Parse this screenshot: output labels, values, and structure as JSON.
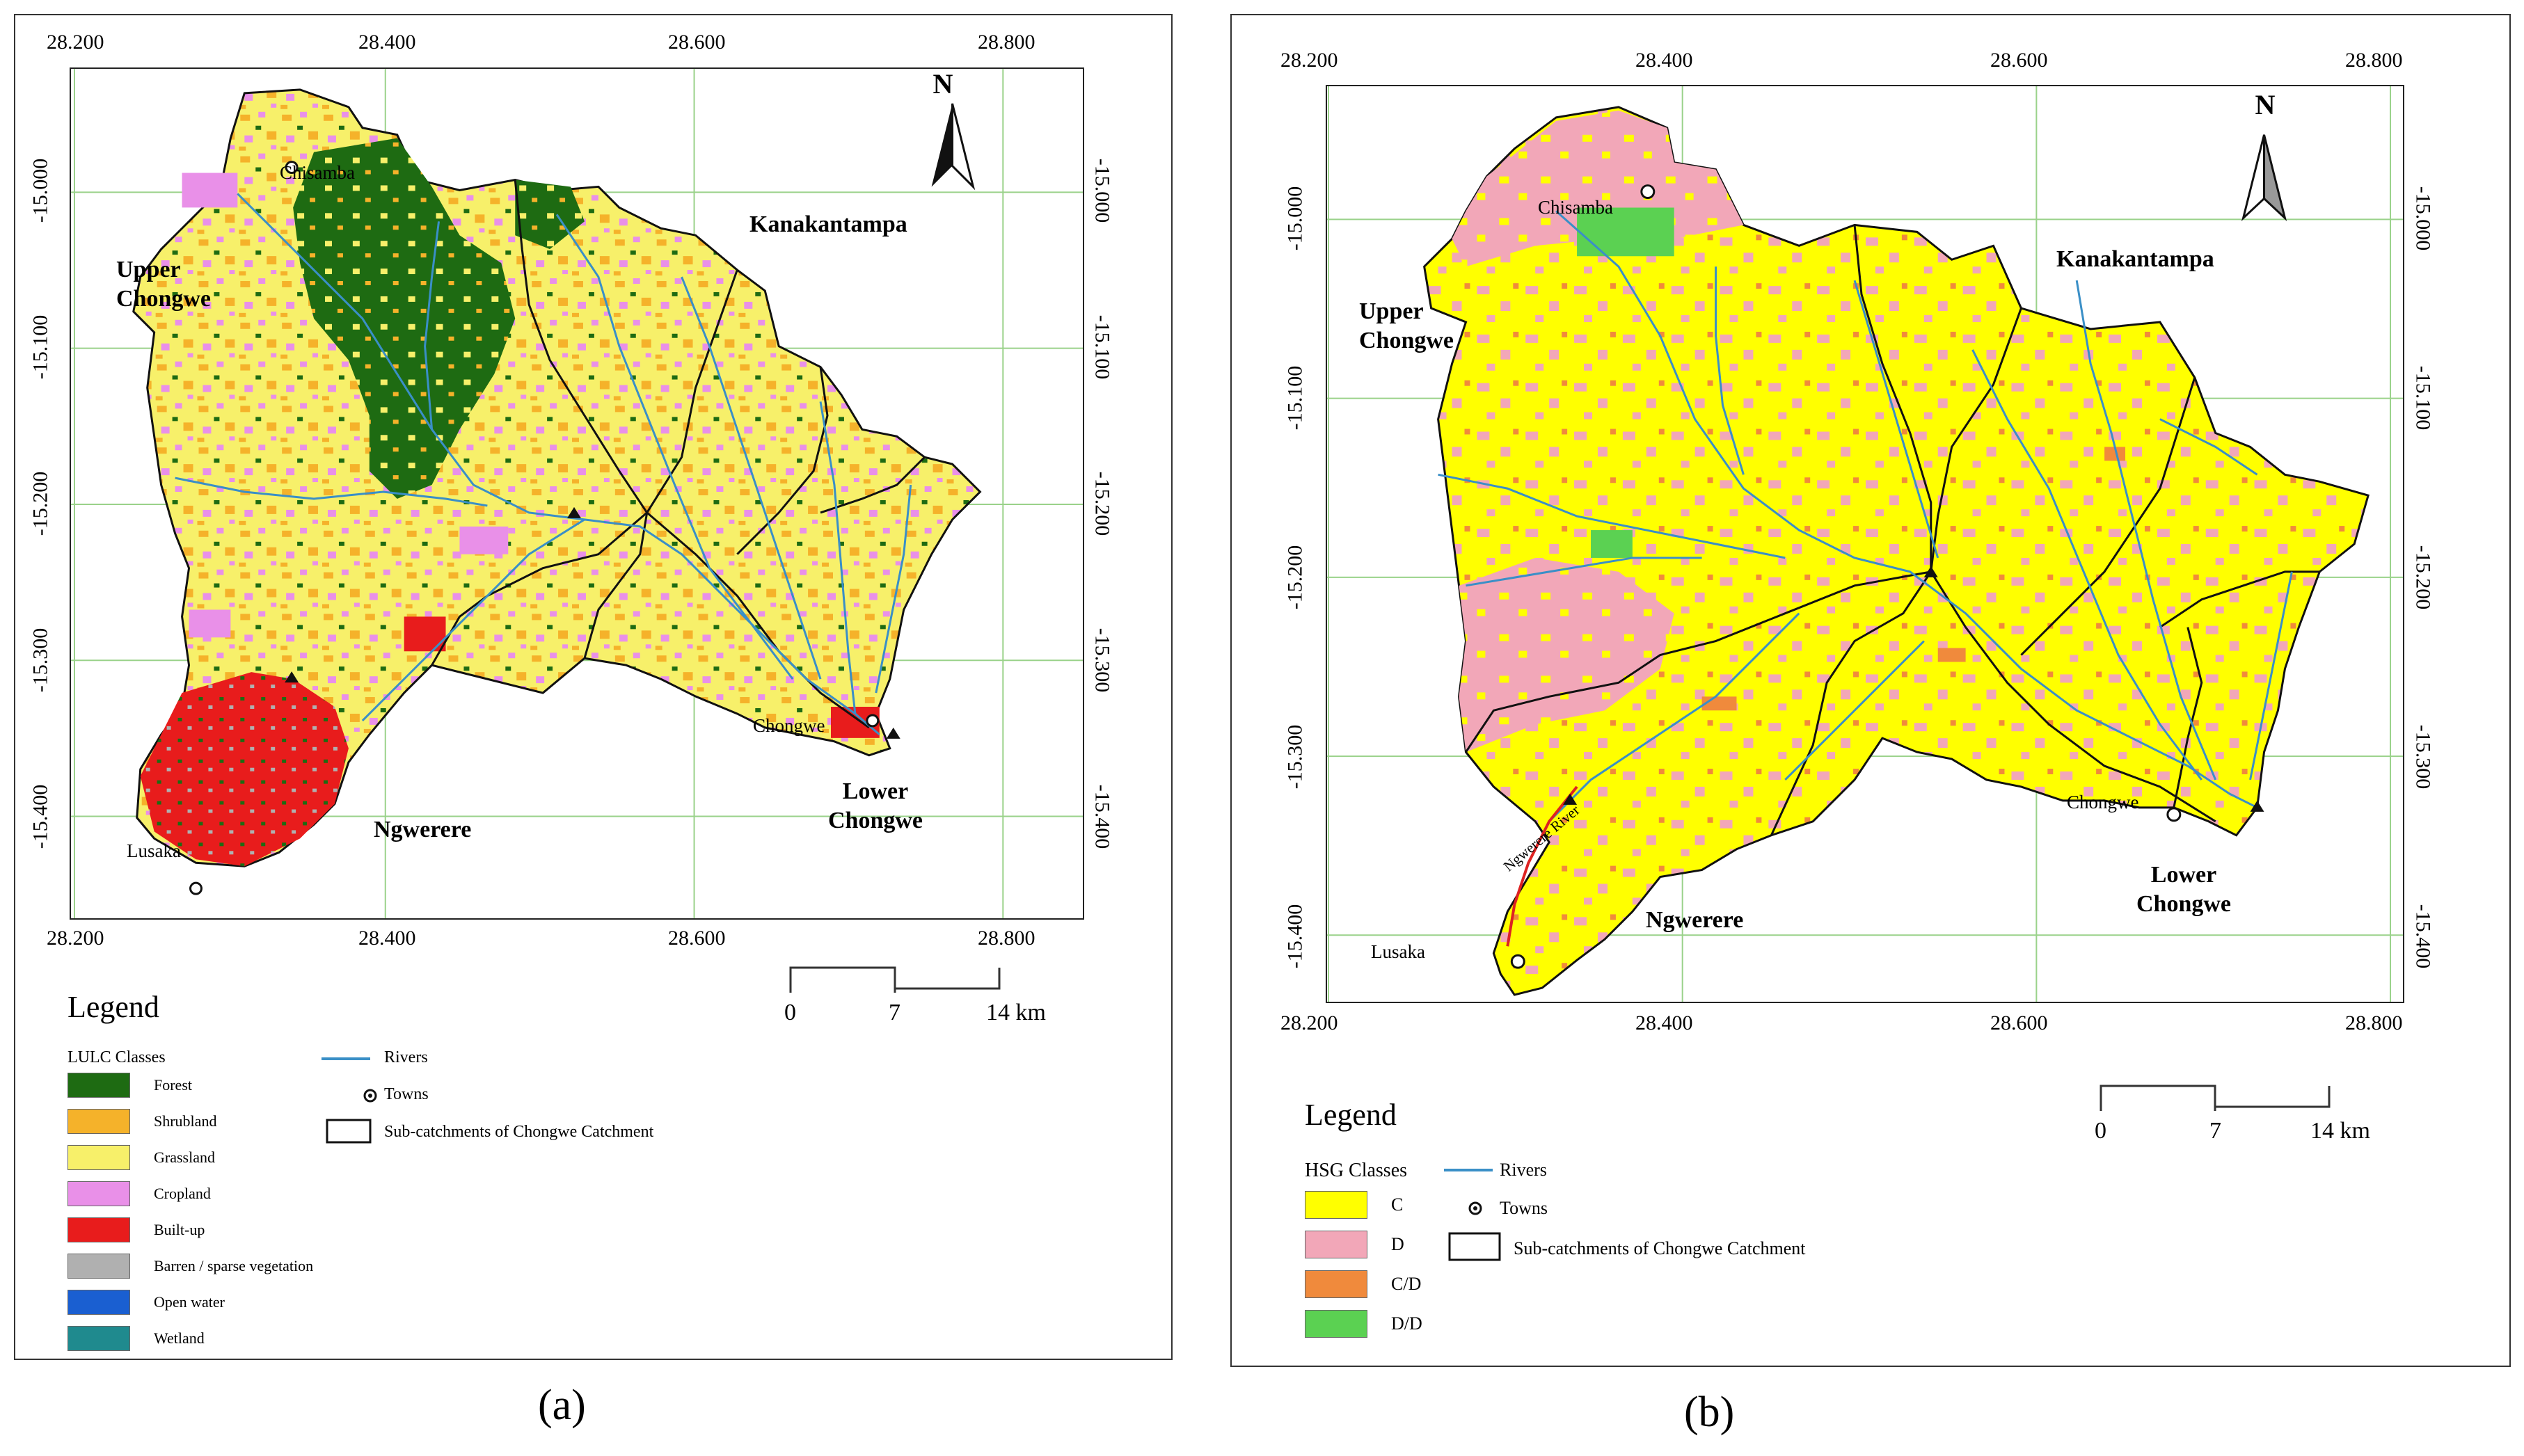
{
  "panel_a": {
    "caption": "(a)",
    "north": "N",
    "x_ticks": [
      "28.200",
      "28.400",
      "28.600",
      "28.800"
    ],
    "y_ticks": [
      "-15.000",
      "-15.100",
      "-15.200",
      "-15.300",
      "-15.400"
    ],
    "places": {
      "upper_chongwe": "Upper\nChongwe",
      "kanakantampa": "Kanakantampa",
      "ngwerere": "Ngwerere",
      "lower_chongwe": "Lower\nChongwe",
      "chisamba": "Chisamba",
      "chongwe": "Chongwe",
      "lusaka": "Lusaka"
    },
    "legend": {
      "title": "Legend",
      "classes_title": "LULC Classes",
      "classes": [
        {
          "label": "Forest",
          "color": "#1e6b12"
        },
        {
          "label": "Shrubland",
          "color": "#f5b22a"
        },
        {
          "label": "Grassland",
          "color": "#f7f06a"
        },
        {
          "label": "Cropland",
          "color": "#e990e8"
        },
        {
          "label": "Built-up",
          "color": "#e81c1c"
        },
        {
          "label": "Barren / sparse vegetation",
          "color": "#b0b0b0"
        },
        {
          "label": "Open water",
          "color": "#1a5fd1"
        },
        {
          "label": "Wetland",
          "color": "#1f8a8e"
        }
      ],
      "rivers": "Rivers",
      "towns": "Towns",
      "subcatch": "Sub-catchments of Chongwe Catchment"
    },
    "scale": [
      "0",
      "7",
      "14 km"
    ]
  },
  "panel_b": {
    "caption": "(b)",
    "north": "N",
    "x_ticks": [
      "28.200",
      "28.400",
      "28.600",
      "28.800"
    ],
    "y_ticks": [
      "-15.000",
      "-15.100",
      "-15.200",
      "-15.300",
      "-15.400"
    ],
    "places": {
      "upper_chongwe": "Upper\nChongwe",
      "kanakantampa": "Kanakantampa",
      "ngwerere": "Ngwerere",
      "lower_chongwe": "Lower\nChongwe",
      "chisamba": "Chisamba",
      "chongwe": "Chongwe",
      "lusaka": "Lusaka",
      "river": "Ngwerere River"
    },
    "legend": {
      "title": "Legend",
      "classes_title": "HSG Classes",
      "classes": [
        {
          "label": "C",
          "color": "#ffff00"
        },
        {
          "label": "D",
          "color": "#f2a7b8"
        },
        {
          "label": "C/D",
          "color": "#f08a3c"
        },
        {
          "label": "D/D",
          "color": "#5bd152"
        }
      ],
      "rivers": "Rivers",
      "towns": "Towns",
      "subcatch": "Sub-catchments of Chongwe Catchment"
    },
    "scale": [
      "0",
      "7",
      "14 km"
    ]
  },
  "colors": {
    "grid": "#9ad28a",
    "river": "#3a8fc7",
    "boundary": "#111111"
  }
}
